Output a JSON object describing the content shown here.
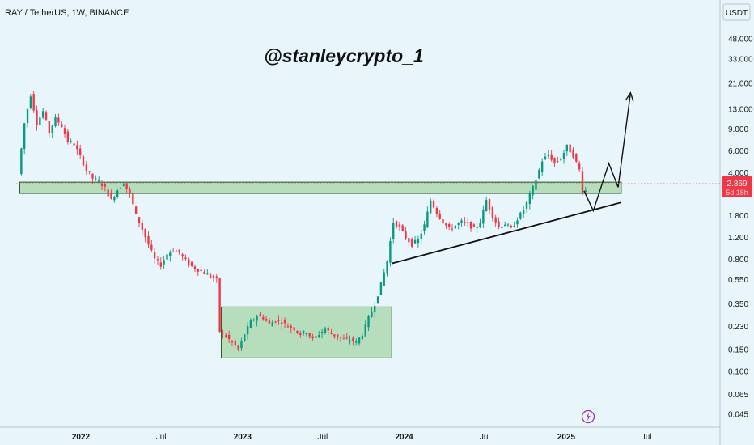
{
  "header": {
    "symbol_line": "RAY / TetherUS, 1W, BINANCE"
  },
  "watermark": {
    "text": "@stanleycrypto_1"
  },
  "currency": {
    "label": "USDT"
  },
  "price_tag": {
    "price": "2.869",
    "countdown": "5d 18h",
    "bg": "#f23645"
  },
  "colors": {
    "up": "#089981",
    "down": "#f23645",
    "zone_fill": "#a5d6a7",
    "zone_stroke": "#2e5e2e",
    "background": "#e8f6fc"
  },
  "icons": {
    "flash": "lightning-icon"
  },
  "chart_data": {
    "type": "candlestick",
    "scale": "log",
    "ylim": [
      0.038,
      60
    ],
    "y_ticks": [
      "48.000",
      "33.000",
      "21.000",
      "13.000",
      "9.000",
      "6.000",
      "4.000",
      "2.869",
      "1.800",
      "1.200",
      "0.800",
      "0.550",
      "0.350",
      "0.230",
      "0.150",
      "0.100",
      "0.065",
      "0.045"
    ],
    "y_tick_values": [
      48,
      33,
      21,
      13,
      9,
      6,
      4,
      2.869,
      1.8,
      1.2,
      0.8,
      0.55,
      0.35,
      0.23,
      0.15,
      0.1,
      0.065,
      0.045
    ],
    "x_ticks": [
      {
        "label": "2022",
        "date": "2022-01-01",
        "bold": true
      },
      {
        "label": "Jul",
        "date": "2022-07-01",
        "bold": false
      },
      {
        "label": "2023",
        "date": "2023-01-01",
        "bold": true
      },
      {
        "label": "Jul",
        "date": "2023-07-01",
        "bold": false
      },
      {
        "label": "2024",
        "date": "2024-01-01",
        "bold": true
      },
      {
        "label": "Jul",
        "date": "2024-07-01",
        "bold": false
      },
      {
        "label": "2025",
        "date": "2025-01-01",
        "bold": true
      },
      {
        "label": "Jul",
        "date": "2025-07-01",
        "bold": false
      }
    ],
    "current_price": 2.869,
    "price_path": [
      [
        "2021-08-16",
        3.9
      ],
      [
        "2021-08-30",
        10
      ],
      [
        "2021-09-13",
        17
      ],
      [
        "2021-09-27",
        10
      ],
      [
        "2021-10-11",
        12.5
      ],
      [
        "2021-10-25",
        8.5
      ],
      [
        "2021-11-08",
        11
      ],
      [
        "2021-11-22",
        9.5
      ],
      [
        "2021-12-06",
        7.2
      ],
      [
        "2021-12-20",
        6.8
      ],
      [
        "2022-01-03",
        5.4
      ],
      [
        "2022-01-17",
        4.2
      ],
      [
        "2022-01-31",
        3.6
      ],
      [
        "2022-02-14",
        3.4
      ],
      [
        "2022-02-28",
        3.0
      ],
      [
        "2022-03-14",
        2.4
      ],
      [
        "2022-03-28",
        2.9
      ],
      [
        "2022-04-11",
        3.3
      ],
      [
        "2022-04-25",
        2.7
      ],
      [
        "2022-05-09",
        1.8
      ],
      [
        "2022-05-23",
        1.4
      ],
      [
        "2022-06-06",
        1.05
      ],
      [
        "2022-06-20",
        0.8
      ],
      [
        "2022-07-04",
        0.72
      ],
      [
        "2022-07-18",
        0.88
      ],
      [
        "2022-08-01",
        0.95
      ],
      [
        "2022-08-15",
        0.9
      ],
      [
        "2022-08-29",
        0.78
      ],
      [
        "2022-09-12",
        0.7
      ],
      [
        "2022-09-26",
        0.66
      ],
      [
        "2022-10-10",
        0.62
      ],
      [
        "2022-10-24",
        0.58
      ],
      [
        "2022-11-07",
        0.55
      ],
      [
        "2022-11-14",
        0.21
      ],
      [
        "2022-11-28",
        0.19
      ],
      [
        "2022-12-12",
        0.17
      ],
      [
        "2022-12-26",
        0.15
      ],
      [
        "2023-01-09",
        0.2
      ],
      [
        "2023-01-23",
        0.25
      ],
      [
        "2023-02-06",
        0.28
      ],
      [
        "2023-02-20",
        0.27
      ],
      [
        "2023-03-06",
        0.24
      ],
      [
        "2023-03-20",
        0.26
      ],
      [
        "2023-04-03",
        0.25
      ],
      [
        "2023-04-17",
        0.23
      ],
      [
        "2023-05-01",
        0.22
      ],
      [
        "2023-05-15",
        0.2
      ],
      [
        "2023-05-29",
        0.21
      ],
      [
        "2023-06-12",
        0.18
      ],
      [
        "2023-06-26",
        0.2
      ],
      [
        "2023-07-10",
        0.22
      ],
      [
        "2023-07-24",
        0.2
      ],
      [
        "2023-08-07",
        0.19
      ],
      [
        "2023-08-21",
        0.18
      ],
      [
        "2023-09-04",
        0.18
      ],
      [
        "2023-09-18",
        0.17
      ],
      [
        "2023-10-02",
        0.2
      ],
      [
        "2023-10-16",
        0.27
      ],
      [
        "2023-10-30",
        0.35
      ],
      [
        "2023-11-13",
        0.5
      ],
      [
        "2023-11-27",
        0.78
      ],
      [
        "2023-12-11",
        1.6
      ],
      [
        "2023-12-25",
        1.45
      ],
      [
        "2024-01-08",
        1.2
      ],
      [
        "2024-01-22",
        1.05
      ],
      [
        "2024-02-05",
        1.15
      ],
      [
        "2024-02-19",
        1.5
      ],
      [
        "2024-03-04",
        2.4
      ],
      [
        "2024-03-18",
        1.9
      ],
      [
        "2024-04-01",
        1.6
      ],
      [
        "2024-04-15",
        1.4
      ],
      [
        "2024-04-29",
        1.5
      ],
      [
        "2024-05-13",
        1.6
      ],
      [
        "2024-05-27",
        1.55
      ],
      [
        "2024-06-10",
        1.4
      ],
      [
        "2024-06-24",
        1.6
      ],
      [
        "2024-07-08",
        2.4
      ],
      [
        "2024-07-22",
        1.8
      ],
      [
        "2024-08-05",
        1.45
      ],
      [
        "2024-08-19",
        1.55
      ],
      [
        "2024-09-02",
        1.4
      ],
      [
        "2024-09-16",
        1.7
      ],
      [
        "2024-09-30",
        2.0
      ],
      [
        "2024-10-14",
        2.6
      ],
      [
        "2024-10-28",
        3.5
      ],
      [
        "2024-11-11",
        5.0
      ],
      [
        "2024-11-25",
        5.6
      ],
      [
        "2024-12-09",
        4.8
      ],
      [
        "2024-12-23",
        5.2
      ],
      [
        "2025-01-06",
        6.5
      ],
      [
        "2025-01-20",
        5.5
      ],
      [
        "2025-02-03",
        4.2
      ],
      [
        "2025-02-10",
        2.869
      ]
    ],
    "annotations": [
      {
        "type": "rectangle",
        "label": "resistance-support-zone",
        "x0": "2021-08-16",
        "x1": "2025-05-05",
        "y0": 2.72,
        "y1": 3.35
      },
      {
        "type": "rectangle",
        "label": "accumulation-range",
        "x0": "2022-11-14",
        "x1": "2023-12-04",
        "y0": 0.128,
        "y1": 0.33
      },
      {
        "type": "trendline",
        "points": [
          [
            "2023-12-04",
            0.74
          ],
          [
            "2025-05-05",
            2.3
          ]
        ]
      },
      {
        "type": "projection-path",
        "points": [
          [
            "2025-02-10",
            2.85
          ],
          [
            "2025-03-03",
            1.97
          ],
          [
            "2025-04-07",
            4.75
          ],
          [
            "2025-04-28",
            3.05
          ],
          [
            "2025-05-26",
            17.6
          ]
        ]
      }
    ]
  }
}
